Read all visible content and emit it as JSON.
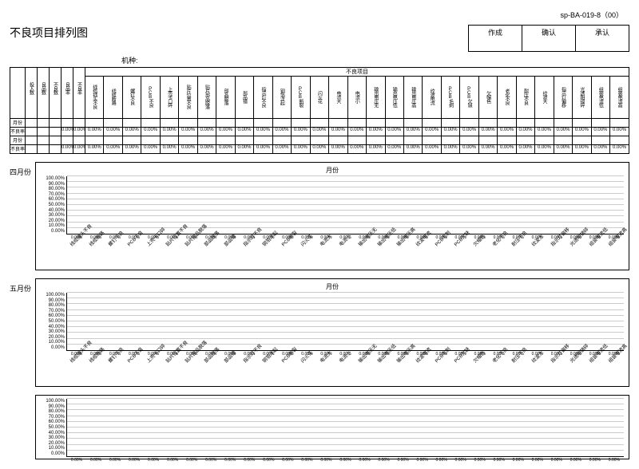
{
  "doc_code": "sp-BA-019-8（00）",
  "title": "不良项目排列图",
  "signature_labels": [
    "作成",
    "确认",
    "承认"
  ],
  "jixing_label": "机种:",
  "header_group_label": "不良项目",
  "top_headers_fixed": [
    "投入数",
    "良品数",
    "不良数",
    "良品率",
    "不良率"
  ],
  "defect_items": [
    "线缆插头不良",
    "线缆断路",
    "螺钉不良",
    "PCB不良",
    "上壳卡口碎",
    "贴片位置不良",
    "贴片部品脱落",
    "部品脱落",
    "部品错",
    "指示灯不良",
    "铜箔浮起",
    "PCB断裂",
    "闪火花",
    "电流大",
    "电流小",
    "输出电压无",
    "输出电压低",
    "输出电压高",
    "纹波电流",
    "PCB毛刺",
    "PCB欠缺",
    "欠帽色",
    "老化不良",
    "耐压不良",
    "纹波大",
    "指示灯偏移",
    "光透明镜碎",
    "组装电流低",
    "组装电流高"
  ],
  "row_labels": [
    "月份",
    "不良率",
    "月份",
    "不良率"
  ],
  "percent_value": "0.00%",
  "charts": [
    {
      "month": "四月份",
      "title": "月份"
    },
    {
      "month": "五月份",
      "title": "月份"
    },
    {
      "month": "",
      "title": ""
    }
  ],
  "yaxis_ticks": [
    "100.00%",
    "90.00%",
    "80.00%",
    "70.00%",
    "60.00%",
    "50.00%",
    "40.00%",
    "30.00%",
    "20.00%",
    "10.00%",
    "0.00%"
  ],
  "zero_label": "0.00%",
  "colors": {
    "border": "#000000",
    "grid": "#cccccc",
    "bg": "#ffffff",
    "text": "#000000"
  },
  "chart_style": {
    "type": "bar",
    "ylim": [
      0,
      100
    ],
    "ytick_step": 10,
    "bar_width": 0.7
  }
}
